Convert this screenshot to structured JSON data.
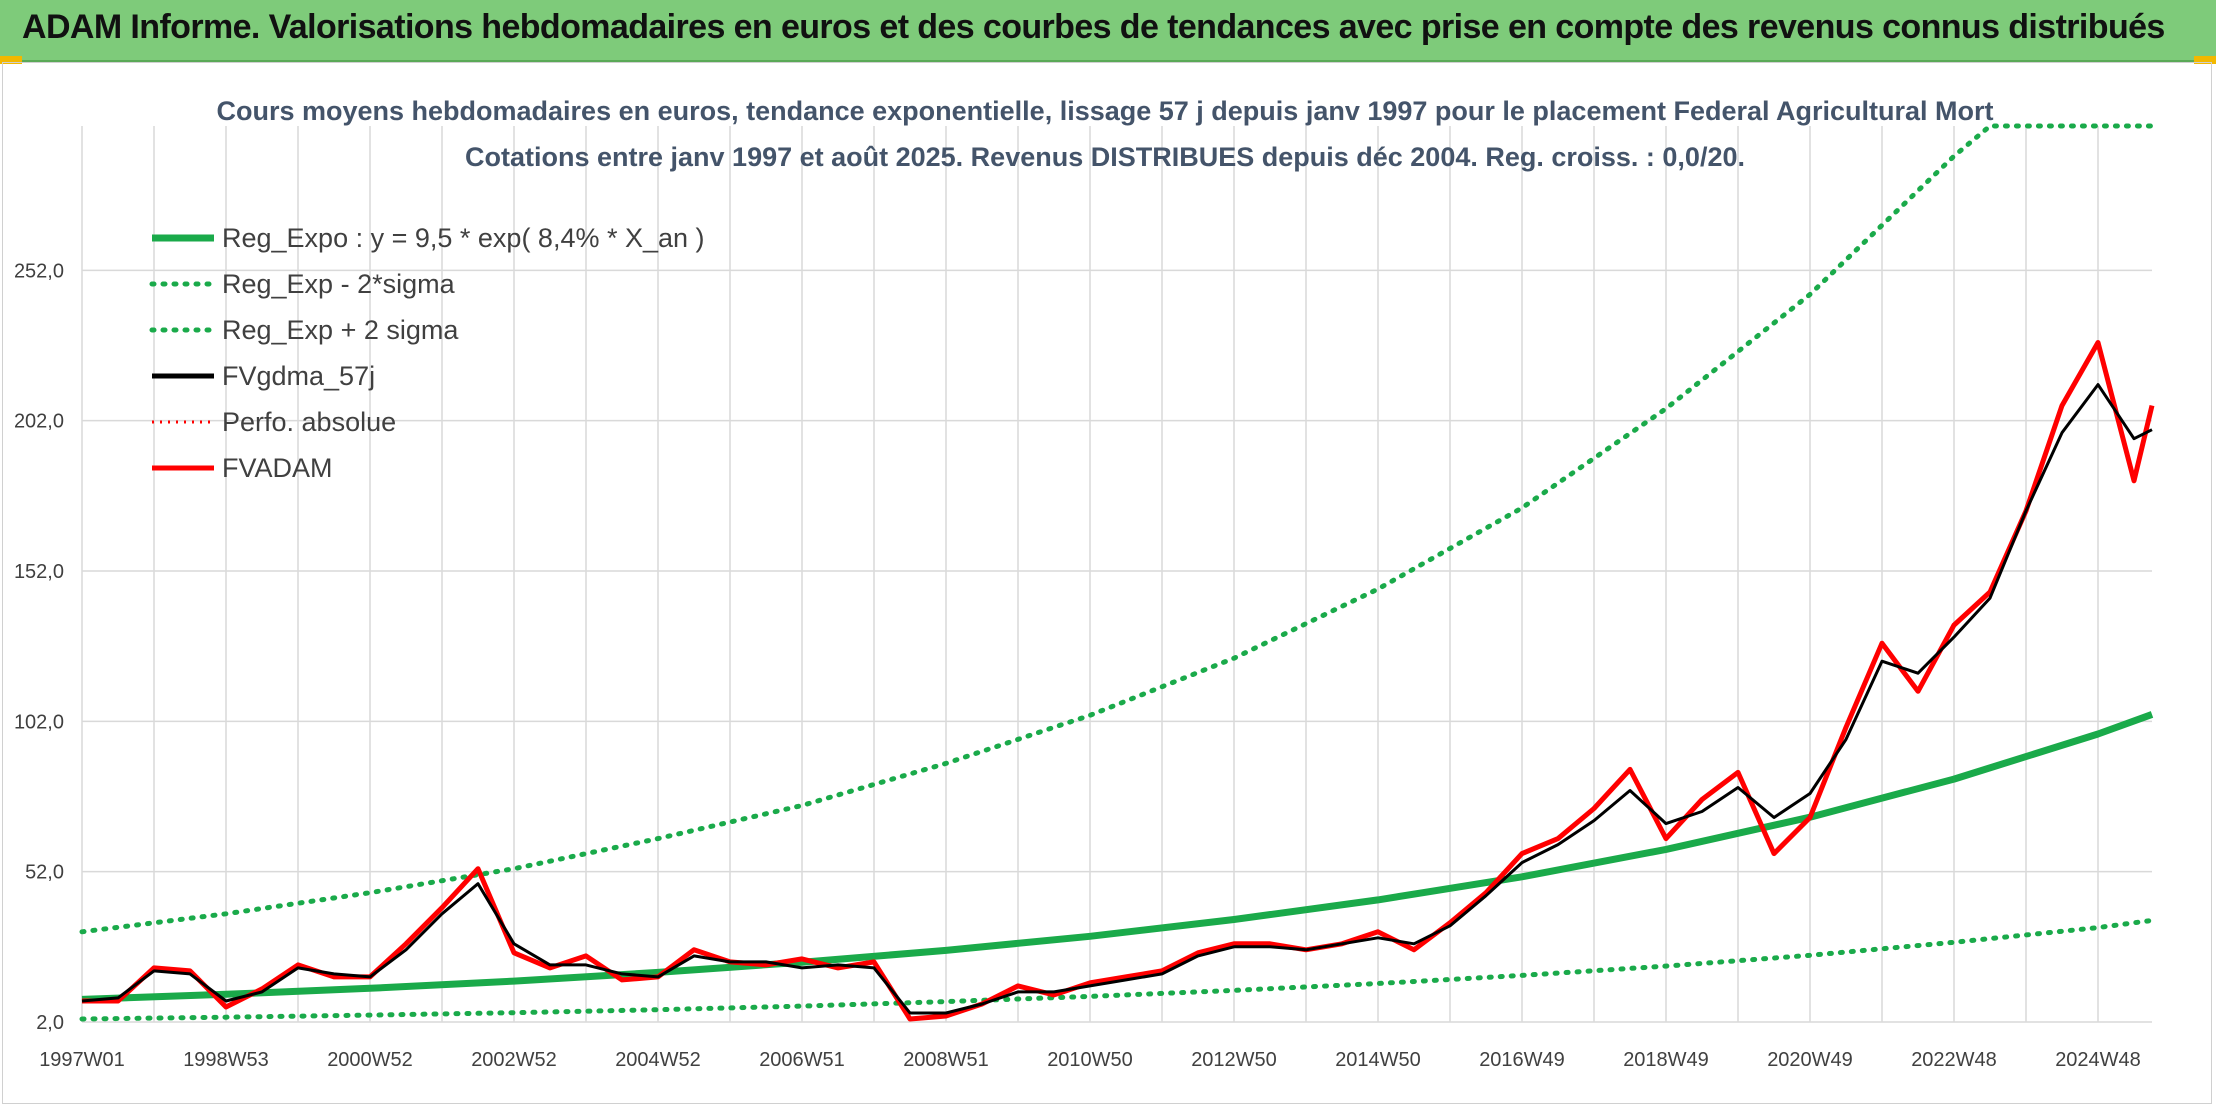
{
  "header": {
    "title": "ADAM Informe. Valorisations hebdomadaires en euros et des courbes de tendances avec prise en compte des revenus connus distribués"
  },
  "colors": {
    "header_bg": "#7ecb7a",
    "reg_expo": "#1aaa4a",
    "sigma": "#1aaa4a",
    "gdma": "#000000",
    "adam": "#ff0000",
    "title": "#44546a",
    "grid": "#d9d9d9"
  },
  "chart_data": {
    "type": "line",
    "title": "Cours moyens hebdomadaires en euros, tendance exponentielle, lissage 57 j depuis janv 1997 pour le placement Federal Agricultural Mort",
    "subtitle": "Cotations entre janv 1997 et août 2025. Revenus DISTRIBUES depuis déc 2004. Reg. croiss. : 0,0/20.",
    "ylim": [
      2,
      300
    ],
    "y_ticks": [
      "2,0",
      "52,0",
      "102,0",
      "152,0",
      "202,0",
      "252,0"
    ],
    "y_tick_values": [
      2,
      52,
      102,
      152,
      202,
      252
    ],
    "x_ticks": [
      "1997W01",
      "1998W53",
      "2000W52",
      "2002W52",
      "2004W52",
      "2006W51",
      "2008W51",
      "2010W50",
      "2012W50",
      "2014W50",
      "2016W49",
      "2018W49",
      "2020W49",
      "2022W48",
      "2024W48"
    ],
    "x_tick_years": [
      1997.0,
      1999.0,
      2001.0,
      2003.0,
      2005.0,
      2007.0,
      2009.0,
      2011.0,
      2013.0,
      2015.0,
      2017.0,
      2019.0,
      2021.0,
      2023.0,
      2025.0
    ],
    "x_range_years": [
      1997.0,
      2025.75
    ],
    "grid": true,
    "legend_position": "top-left",
    "series": [
      {
        "name": "Reg_Expo : y = 9,5 * exp( 8,4% *  X_an )",
        "style": "solid-thick",
        "x": [
          1997.0,
          1999.0,
          2001.0,
          2003.0,
          2005.0,
          2007.0,
          2009.0,
          2011.0,
          2013.0,
          2015.0,
          2017.0,
          2019.0,
          2021.0,
          2023.0,
          2025.0,
          2025.75
        ],
        "values": [
          9.5,
          11.2,
          13.2,
          15.6,
          18.5,
          21.9,
          25.8,
          30.5,
          36.1,
          42.6,
          50.3,
          59.4,
          70.1,
          82.8,
          97.8,
          104.3
        ]
      },
      {
        "name": "Reg_Exp - 2*sigma",
        "style": "dotted",
        "x": [
          1997.0,
          1999.0,
          2001.0,
          2003.0,
          2005.0,
          2007.0,
          2009.0,
          2011.0,
          2013.0,
          2015.0,
          2017.0,
          2019.0,
          2021.0,
          2023.0,
          2025.0,
          2025.75
        ],
        "values": [
          3.0,
          3.6,
          4.3,
          5.1,
          6.1,
          7.3,
          8.8,
          10.5,
          12.5,
          14.8,
          17.5,
          20.6,
          24.2,
          28.5,
          33.4,
          35.8
        ]
      },
      {
        "name": "Reg_Exp + 2 sigma",
        "style": "dotted",
        "x": [
          1997.0,
          1999.0,
          2001.0,
          2003.0,
          2005.0,
          2007.0,
          2009.0,
          2011.0,
          2013.0,
          2015.0,
          2017.0,
          2019.0,
          2021.0,
          2023.0,
          2023.5,
          2025.75
        ],
        "values": [
          32,
          38,
          45,
          53,
          63,
          74,
          88,
          104,
          123,
          146,
          173,
          206,
          244,
          290,
          300,
          300
        ]
      },
      {
        "name": "FVgdma_57j",
        "style": "solid-thin",
        "x": [
          1997.0,
          1997.5,
          1998.0,
          1998.5,
          1999.0,
          1999.5,
          2000.0,
          2000.5,
          2001.0,
          2001.5,
          2002.0,
          2002.5,
          2003.0,
          2003.5,
          2004.0,
          2004.5,
          2005.0,
          2005.5,
          2006.0,
          2006.5,
          2007.0,
          2007.5,
          2008.0,
          2008.5,
          2009.0,
          2009.5,
          2010.0,
          2010.5,
          2011.0,
          2011.5,
          2012.0,
          2012.5,
          2013.0,
          2013.5,
          2014.0,
          2014.5,
          2015.0,
          2015.5,
          2016.0,
          2016.5,
          2017.0,
          2017.5,
          2018.0,
          2018.5,
          2019.0,
          2019.5,
          2020.0,
          2020.5,
          2021.0,
          2021.5,
          2022.0,
          2022.5,
          2023.0,
          2023.5,
          2024.0,
          2024.5,
          2025.0,
          2025.5,
          2025.75
        ],
        "values": [
          9,
          10,
          19,
          18,
          9,
          12,
          20,
          18,
          17,
          26,
          38,
          48,
          28,
          21,
          21,
          18,
          17,
          24,
          22,
          22,
          20,
          21,
          20,
          5,
          5,
          8,
          12,
          12,
          14,
          16,
          18,
          24,
          27,
          27,
          26,
          28,
          30,
          28,
          34,
          44,
          55,
          61,
          69,
          79,
          68,
          72,
          80,
          70,
          78,
          96,
          122,
          118,
          130,
          143,
          172,
          198,
          214,
          196,
          199
        ]
      },
      {
        "name": "Perfo. absolue",
        "style": "dotted-red",
        "x": [],
        "values": []
      },
      {
        "name": "FVADAM",
        "style": "solid-thick-red",
        "x": [
          1997.0,
          1997.5,
          1998.0,
          1998.5,
          1999.0,
          1999.5,
          2000.0,
          2000.5,
          2001.0,
          2001.5,
          2002.0,
          2002.5,
          2003.0,
          2003.5,
          2004.0,
          2004.5,
          2005.0,
          2005.5,
          2006.0,
          2006.5,
          2007.0,
          2007.5,
          2008.0,
          2008.5,
          2009.0,
          2009.5,
          2010.0,
          2010.5,
          2011.0,
          2011.5,
          2012.0,
          2012.5,
          2013.0,
          2013.5,
          2014.0,
          2014.5,
          2015.0,
          2015.5,
          2016.0,
          2016.5,
          2017.0,
          2017.5,
          2018.0,
          2018.5,
          2019.0,
          2019.5,
          2020.0,
          2020.5,
          2021.0,
          2021.5,
          2022.0,
          2022.5,
          2023.0,
          2023.5,
          2024.0,
          2024.5,
          2025.0,
          2025.5,
          2025.75
        ],
        "values": [
          9,
          9,
          20,
          19,
          7,
          13,
          21,
          17,
          17,
          28,
          40,
          53,
          25,
          20,
          24,
          16,
          17,
          26,
          22,
          21,
          23,
          20,
          22,
          3,
          4,
          8,
          14,
          11,
          15,
          17,
          19,
          25,
          28,
          28,
          26,
          28,
          32,
          26,
          35,
          45,
          58,
          63,
          73,
          86,
          63,
          76,
          85,
          58,
          70,
          100,
          128,
          112,
          134,
          145,
          172,
          207,
          228,
          182,
          207
        ]
      }
    ]
  }
}
